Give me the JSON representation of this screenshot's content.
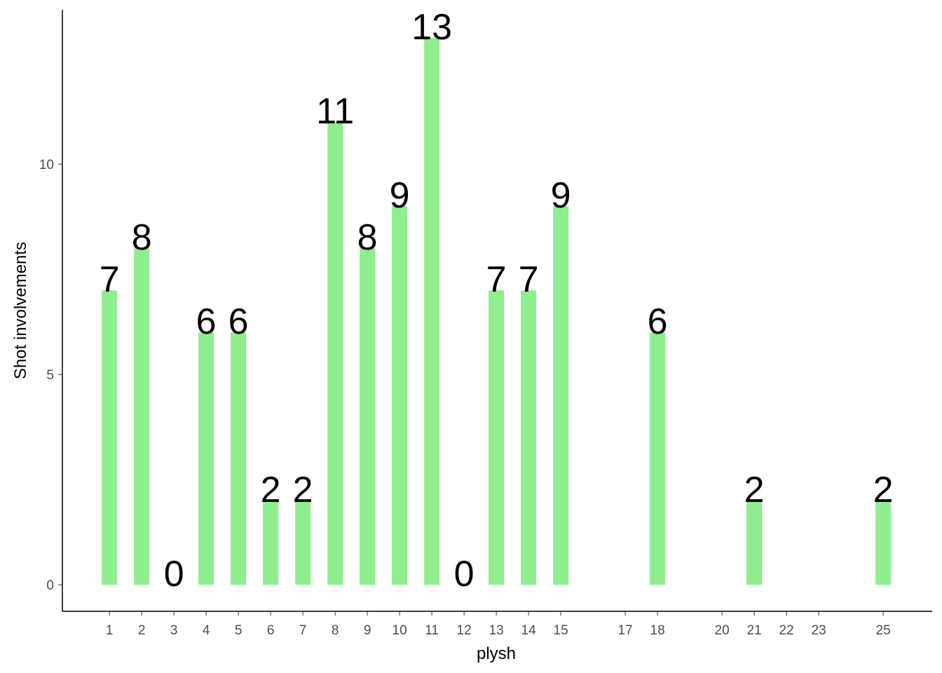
{
  "chart_data": {
    "type": "bar",
    "x_label": "plysh",
    "y_label": "Shot involvements",
    "x": [
      1,
      2,
      3,
      4,
      5,
      6,
      7,
      8,
      9,
      10,
      11,
      12,
      13,
      14,
      15,
      18,
      21,
      25
    ],
    "values": [
      7,
      8,
      0,
      6,
      6,
      2,
      2,
      11,
      8,
      9,
      13,
      0,
      7,
      7,
      9,
      6,
      2,
      2
    ],
    "color": "#90ee90",
    "xlim": [
      -0.46,
      26.52
    ],
    "xticks": [
      1,
      2,
      3,
      4,
      5,
      6,
      7,
      8,
      9,
      10,
      11,
      12,
      13,
      14,
      15,
      17,
      18,
      20,
      21,
      22,
      23,
      25
    ],
    "ylim": [
      -0.63,
      13.67
    ],
    "yticks": [
      0,
      5,
      10
    ],
    "grid": false
  }
}
